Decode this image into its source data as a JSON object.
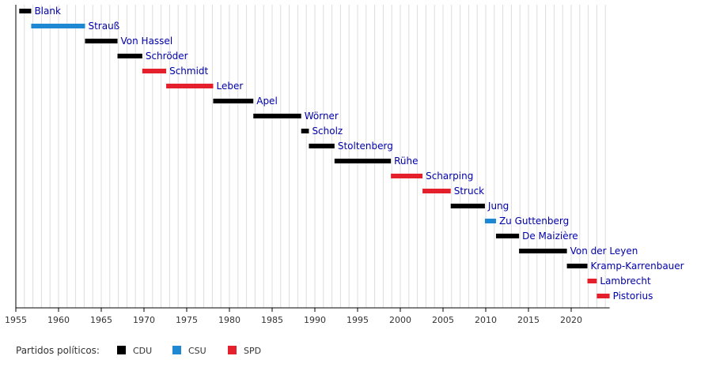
{
  "chart_data": {
    "type": "timeline",
    "x_range": [
      1955,
      2024.5
    ],
    "tick_labels": [
      "1955",
      "1960",
      "1965",
      "1970",
      "1975",
      "1980",
      "1985",
      "1990",
      "1995",
      "2000",
      "2005",
      "2010",
      "2015",
      "2020"
    ],
    "tick_values": [
      1955,
      1960,
      1965,
      1970,
      1975,
      1980,
      1985,
      1990,
      1995,
      2000,
      2005,
      2010,
      2015,
      2020
    ],
    "minor_grid_step": 1,
    "grid": true,
    "legend": {
      "title": "Partidos políticos:",
      "position": "bottom-left",
      "items": [
        {
          "party": "CDU",
          "color": "#000000"
        },
        {
          "party": "CSU",
          "color": "#1e88d2"
        },
        {
          "party": "SPD",
          "color": "#e3202b"
        }
      ]
    },
    "colors": {
      "CDU": "#000000",
      "CSU": "#1e88d2",
      "SPD": "#e3202b",
      "label": "#0000aa",
      "grid": "#dddddd",
      "axis": "#000000"
    },
    "series": [
      {
        "name": "Blank",
        "party": "CDU",
        "start": 1955.4,
        "end": 1956.8
      },
      {
        "name": "Strauß",
        "party": "CSU",
        "start": 1956.8,
        "end": 1963.1
      },
      {
        "name": "Von Hassel",
        "party": "CDU",
        "start": 1963.1,
        "end": 1966.9
      },
      {
        "name": "Schröder",
        "party": "CDU",
        "start": 1966.9,
        "end": 1969.8
      },
      {
        "name": "Schmidt",
        "party": "SPD",
        "start": 1969.8,
        "end": 1972.6
      },
      {
        "name": "Leber",
        "party": "SPD",
        "start": 1972.6,
        "end": 1978.1
      },
      {
        "name": "Apel",
        "party": "CDU",
        "start": 1978.1,
        "end": 1982.8
      },
      {
        "name": "Wörner",
        "party": "CDU",
        "start": 1982.8,
        "end": 1988.4
      },
      {
        "name": "Scholz",
        "party": "CDU",
        "start": 1988.4,
        "end": 1989.3
      },
      {
        "name": "Stoltenberg",
        "party": "CDU",
        "start": 1989.3,
        "end": 1992.3
      },
      {
        "name": "Rühe",
        "party": "CDU",
        "start": 1992.3,
        "end": 1998.9
      },
      {
        "name": "Scharping",
        "party": "SPD",
        "start": 1998.9,
        "end": 2002.6
      },
      {
        "name": "Struck",
        "party": "SPD",
        "start": 2002.6,
        "end": 2005.9
      },
      {
        "name": "Jung",
        "party": "CDU",
        "start": 2005.9,
        "end": 2009.9
      },
      {
        "name": "Zu Guttenberg",
        "party": "CSU",
        "start": 2009.9,
        "end": 2011.2
      },
      {
        "name": "De Maizière",
        "party": "CDU",
        "start": 2011.2,
        "end": 2013.9
      },
      {
        "name": "Von der Leyen",
        "party": "CDU",
        "start": 2013.9,
        "end": 2019.5
      },
      {
        "name": "Kramp-Karrenbauer",
        "party": "CDU",
        "start": 2019.5,
        "end": 2021.9
      },
      {
        "name": "Lambrecht",
        "party": "SPD",
        "start": 2021.9,
        "end": 2023.0
      },
      {
        "name": "Pistorius",
        "party": "SPD",
        "start": 2023.0,
        "end": 2024.5
      }
    ]
  }
}
